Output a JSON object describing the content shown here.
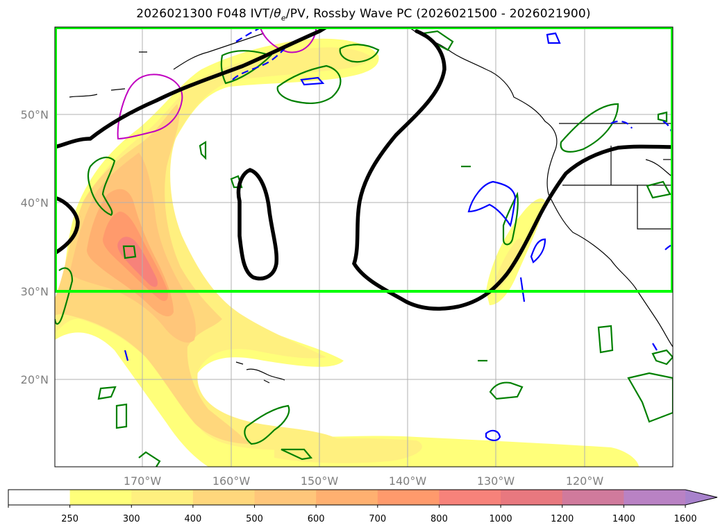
{
  "title": "2026021300 F048 IVT/θe/PV, Rossby Wave PC (2026021500 - 2026021900)",
  "title_parts": {
    "prefix": "2026021300 F048 IVT/",
    "theta": "θ",
    "theta_sub": "e",
    "suffix": "/PV, Rossby Wave PC (2026021500 - 2026021900)"
  },
  "lat_labels": [
    "50°N",
    "40°N",
    "30°N",
    "20°N"
  ],
  "lon_labels": [
    "170°W",
    "160°W",
    "150°W",
    "140°W",
    "130°W",
    "120°W"
  ],
  "colorbar": {
    "ticks": [
      "250",
      "300",
      "400",
      "500",
      "600",
      "700",
      "800",
      "1000",
      "1200",
      "1400",
      "1600"
    ],
    "colors": [
      "#ffffff",
      "#ffff7a",
      "#fff07f",
      "#ffd77c",
      "#ffc67a",
      "#ffb070",
      "#ff9a6c",
      "#f7827a",
      "#e8787f",
      "#d07a9c",
      "#b982c4",
      "#a882cc"
    ],
    "extend": "max"
  },
  "colors": {
    "box": "#00ff00",
    "rossby_wave_pc": "#000000",
    "theta_e_positive": "#008000",
    "theta_e_negative": "#0000ff",
    "pv": "#c000c0",
    "coastline": "#000000",
    "gridline": "#b0b0b0"
  },
  "map": {
    "lon_range": [
      -180,
      -110
    ],
    "lat_range": [
      10,
      60
    ],
    "highlight_box": {
      "lon": [
        -180,
        -110
      ],
      "lat": [
        30,
        60
      ]
    }
  }
}
